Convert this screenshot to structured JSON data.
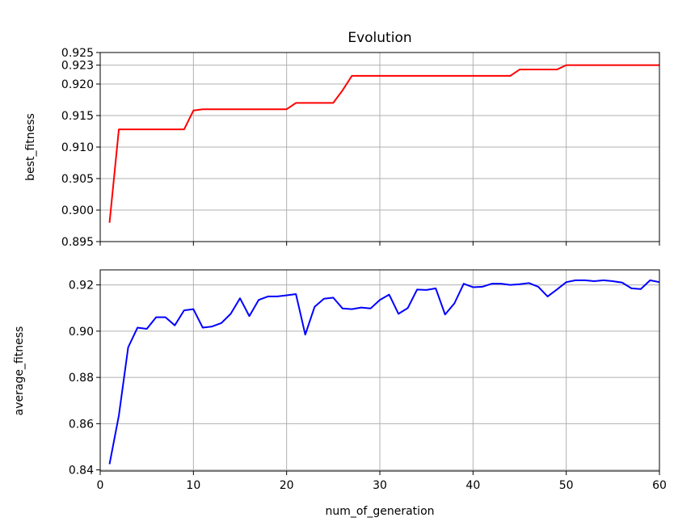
{
  "chart_data": [
    {
      "type": "line",
      "title": "Evolution",
      "xlabel": "",
      "ylabel": "best_fitness",
      "xlim": [
        0,
        60
      ],
      "ylim": [
        0.895,
        0.925
      ],
      "xticks": [
        0,
        10,
        20,
        30,
        40,
        50,
        60
      ],
      "show_xtick_labels": false,
      "yticks": [
        0.895,
        0.9,
        0.905,
        0.91,
        0.915,
        0.92,
        0.923,
        0.925
      ],
      "ytick_labels": [
        "0.895",
        "0.900",
        "0.905",
        "0.910",
        "0.915",
        "0.920",
        "0.923",
        "0.925"
      ],
      "grid": true,
      "series": [
        {
          "color": "#ff0000",
          "x": [
            1,
            2,
            3,
            4,
            5,
            6,
            7,
            8,
            9,
            10,
            11,
            12,
            13,
            14,
            15,
            16,
            17,
            18,
            19,
            20,
            21,
            22,
            23,
            24,
            25,
            26,
            27,
            28,
            29,
            30,
            31,
            32,
            33,
            34,
            35,
            36,
            37,
            38,
            39,
            40,
            41,
            42,
            43,
            44,
            45,
            46,
            47,
            48,
            49,
            50,
            51,
            52,
            53,
            54,
            55,
            56,
            57,
            58,
            59,
            60
          ],
          "values": [
            0.898,
            0.9128,
            0.9128,
            0.9128,
            0.9128,
            0.9128,
            0.9128,
            0.9128,
            0.9128,
            0.9158,
            0.916,
            0.916,
            0.916,
            0.916,
            0.916,
            0.916,
            0.916,
            0.916,
            0.916,
            0.916,
            0.917,
            0.917,
            0.917,
            0.917,
            0.917,
            0.919,
            0.9213,
            0.9213,
            0.9213,
            0.9213,
            0.9213,
            0.9213,
            0.9213,
            0.9213,
            0.9213,
            0.9213,
            0.9213,
            0.9213,
            0.9213,
            0.9213,
            0.9213,
            0.9213,
            0.9213,
            0.9213,
            0.9223,
            0.9223,
            0.9223,
            0.9223,
            0.9223,
            0.923,
            0.923,
            0.923,
            0.923,
            0.923,
            0.923,
            0.923,
            0.923,
            0.923,
            0.923,
            0.923
          ]
        }
      ]
    },
    {
      "type": "line",
      "title": "",
      "xlabel": "num_of_generation",
      "ylabel": "average_fitness",
      "xlim": [
        0,
        60
      ],
      "ylim": [
        0.8395,
        0.9265
      ],
      "xticks": [
        0,
        10,
        20,
        30,
        40,
        50,
        60
      ],
      "show_xtick_labels": true,
      "xtick_labels": [
        "0",
        "10",
        "20",
        "30",
        "40",
        "50",
        "60"
      ],
      "yticks": [
        0.84,
        0.86,
        0.88,
        0.9,
        0.92
      ],
      "ytick_labels": [
        "0.84",
        "0.86",
        "0.88",
        "0.90",
        "0.92"
      ],
      "grid": true,
      "series": [
        {
          "color": "#0000ff",
          "x": [
            1,
            2,
            3,
            4,
            5,
            6,
            7,
            8,
            9,
            10,
            11,
            12,
            13,
            14,
            15,
            16,
            17,
            18,
            19,
            20,
            21,
            22,
            23,
            24,
            25,
            26,
            27,
            28,
            29,
            30,
            31,
            32,
            33,
            34,
            35,
            36,
            37,
            38,
            39,
            40,
            41,
            42,
            43,
            44,
            45,
            46,
            47,
            48,
            49,
            50,
            51,
            52,
            53,
            54,
            55,
            56,
            57,
            58,
            59,
            60
          ],
          "values": [
            0.8425,
            0.8635,
            0.893,
            0.9015,
            0.901,
            0.906,
            0.906,
            0.9025,
            0.909,
            0.9095,
            0.9015,
            0.902,
            0.9035,
            0.9075,
            0.9142,
            0.9065,
            0.9135,
            0.915,
            0.915,
            0.9155,
            0.916,
            0.8985,
            0.9105,
            0.914,
            0.9145,
            0.9098,
            0.9095,
            0.9102,
            0.9098,
            0.9135,
            0.9158,
            0.9075,
            0.91,
            0.918,
            0.9178,
            0.9185,
            0.9072,
            0.912,
            0.9205,
            0.919,
            0.9192,
            0.9205,
            0.9205,
            0.92,
            0.9203,
            0.9208,
            0.9192,
            0.915,
            0.918,
            0.9212,
            0.922,
            0.922,
            0.9216,
            0.922,
            0.9216,
            0.921,
            0.9185,
            0.9182,
            0.922,
            0.9212
          ]
        }
      ]
    }
  ]
}
